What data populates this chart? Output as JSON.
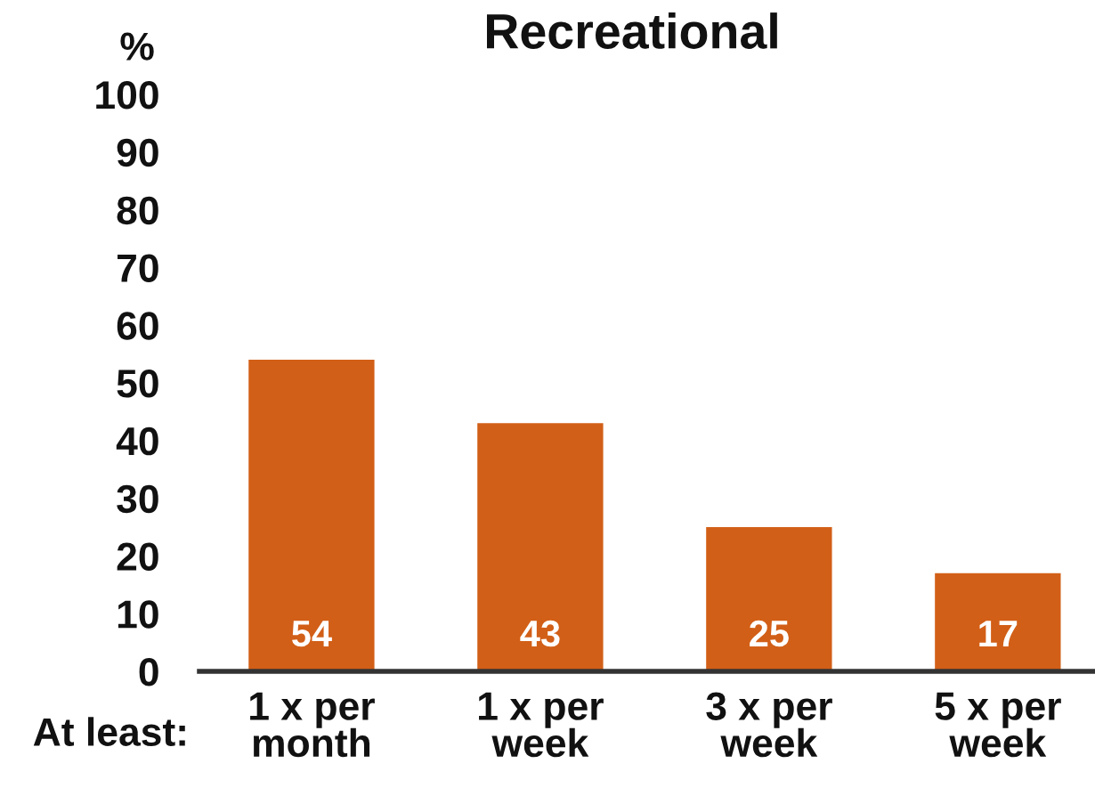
{
  "chart_data": {
    "type": "bar",
    "title": "Recreational",
    "xlabel": "At least:",
    "ylabel": "%",
    "categories": [
      "1 x per\nmonth",
      "1 x per\nweek",
      "3 x per\nweek",
      "5 x per\nweek"
    ],
    "values": [
      54,
      43,
      25,
      17
    ],
    "color": "#d25f17",
    "ylim": [
      0,
      100
    ],
    "yticks": [
      0,
      10,
      20,
      30,
      40,
      50,
      60,
      70,
      80,
      90,
      100
    ],
    "data_labels": true,
    "grid": false,
    "legend": false
  }
}
